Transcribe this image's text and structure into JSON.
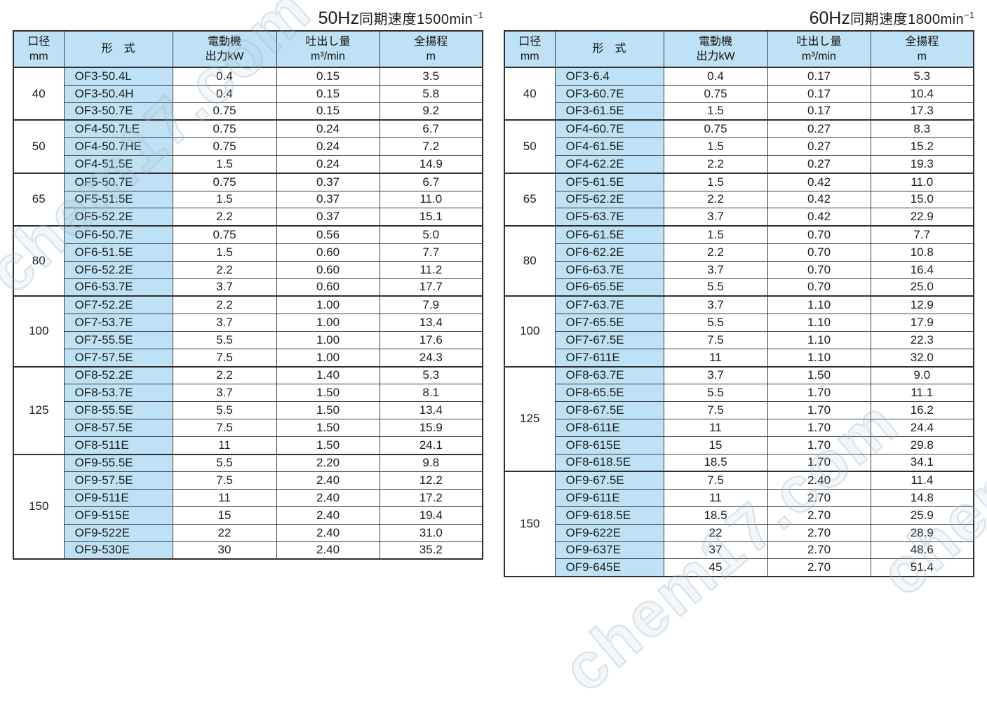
{
  "colors": {
    "cell_blue": "#bfe1f5",
    "grid": "#3e3e3e",
    "text": "#1d1d1d",
    "watermark": "#adc4d8"
  },
  "watermark": {
    "text": "chem17.com"
  },
  "tables": [
    {
      "id": "50hz",
      "title": {
        "hz": "50Hz",
        "body": "同期速度1500min",
        "sup": "−1"
      },
      "headers": {
        "bore": [
          "口径",
          "mm"
        ],
        "model": "形　式",
        "power": [
          "電動機",
          "出力kW"
        ],
        "discharge": [
          "吐出し量",
          "m³/min"
        ],
        "head": [
          "全揚程",
          "m"
        ]
      },
      "groups": [
        {
          "bore": "40",
          "rows": [
            [
              "OF3-50.4L",
              "0.4",
              "0.15",
              "3.5"
            ],
            [
              "OF3-50.4H",
              "0.4",
              "0.15",
              "5.8"
            ],
            [
              "OF3-50.7E",
              "0.75",
              "0.15",
              "9.2"
            ]
          ]
        },
        {
          "bore": "50",
          "rows": [
            [
              "OF4-50.7LE",
              "0.75",
              "0.24",
              "6.7"
            ],
            [
              "OF4-50.7HE",
              "0.75",
              "0.24",
              "7.2"
            ],
            [
              "OF4-51.5E",
              "1.5",
              "0.24",
              "14.9"
            ]
          ]
        },
        {
          "bore": "65",
          "rows": [
            [
              "OF5-50.7E",
              "0.75",
              "0.37",
              "6.7"
            ],
            [
              "OF5-51.5E",
              "1.5",
              "0.37",
              "11.0"
            ],
            [
              "OF5-52.2E",
              "2.2",
              "0.37",
              "15.1"
            ]
          ]
        },
        {
          "bore": "80",
          "rows": [
            [
              "OF6-50.7E",
              "0.75",
              "0.56",
              "5.0"
            ],
            [
              "OF6-51.5E",
              "1.5",
              "0.60",
              "7.7"
            ],
            [
              "OF6-52.2E",
              "2.2",
              "0.60",
              "11.2"
            ],
            [
              "OF6-53.7E",
              "3.7",
              "0.60",
              "17.7"
            ]
          ]
        },
        {
          "bore": "100",
          "rows": [
            [
              "OF7-52.2E",
              "2.2",
              "1.00",
              "7.9"
            ],
            [
              "OF7-53.7E",
              "3.7",
              "1.00",
              "13.4"
            ],
            [
              "OF7-55.5E",
              "5.5",
              "1.00",
              "17.6"
            ],
            [
              "OF7-57.5E",
              "7.5",
              "1.00",
              "24.3"
            ]
          ]
        },
        {
          "bore": "125",
          "rows": [
            [
              "OF8-52.2E",
              "2.2",
              "1.40",
              "5.3"
            ],
            [
              "OF8-53.7E",
              "3.7",
              "1.50",
              "8.1"
            ],
            [
              "OF8-55.5E",
              "5.5",
              "1.50",
              "13.4"
            ],
            [
              "OF8-57.5E",
              "7.5",
              "1.50",
              "15.9"
            ],
            [
              "OF8-511E",
              "11",
              "1.50",
              "24.1"
            ]
          ]
        },
        {
          "bore": "150",
          "rows": [
            [
              "OF9-55.5E",
              "5.5",
              "2.20",
              "9.8"
            ],
            [
              "OF9-57.5E",
              "7.5",
              "2.40",
              "12.2"
            ],
            [
              "OF9-511E",
              "11",
              "2.40",
              "17.2"
            ],
            [
              "OF9-515E",
              "15",
              "2.40",
              "19.4"
            ],
            [
              "OF9-522E",
              "22",
              "2.40",
              "31.0"
            ],
            [
              "OF9-530E",
              "30",
              "2.40",
              "35.2"
            ]
          ]
        }
      ]
    },
    {
      "id": "60hz",
      "title": {
        "hz": "60Hz",
        "body": "同期速度1800min",
        "sup": "−1"
      },
      "headers": {
        "bore": [
          "口径",
          "mm"
        ],
        "model": "形　式",
        "power": [
          "電動機",
          "出力kW"
        ],
        "discharge": [
          "吐出し量",
          "m³/min"
        ],
        "head": [
          "全揚程",
          "m"
        ]
      },
      "groups": [
        {
          "bore": "40",
          "rows": [
            [
              "OF3-6.4",
              "0.4",
              "0.17",
              "5.3"
            ],
            [
              "OF3-60.7E",
              "0.75",
              "0.17",
              "10.4"
            ],
            [
              "OF3-61.5E",
              "1.5",
              "0.17",
              "17.3"
            ]
          ]
        },
        {
          "bore": "50",
          "rows": [
            [
              "OF4-60.7E",
              "0.75",
              "0.27",
              "8.3"
            ],
            [
              "OF4-61.5E",
              "1.5",
              "0.27",
              "15.2"
            ],
            [
              "OF4-62.2E",
              "2.2",
              "0.27",
              "19.3"
            ]
          ]
        },
        {
          "bore": "65",
          "rows": [
            [
              "OF5-61.5E",
              "1.5",
              "0.42",
              "11.0"
            ],
            [
              "OF5-62.2E",
              "2.2",
              "0.42",
              "15.0"
            ],
            [
              "OF5-63.7E",
              "3.7",
              "0.42",
              "22.9"
            ]
          ]
        },
        {
          "bore": "80",
          "rows": [
            [
              "OF6-61.5E",
              "1.5",
              "0.70",
              "7.7"
            ],
            [
              "OF6-62.2E",
              "2.2",
              "0.70",
              "10.8"
            ],
            [
              "OF6-63.7E",
              "3.7",
              "0.70",
              "16.4"
            ],
            [
              "OF6-65.5E",
              "5.5",
              "0.70",
              "25.0"
            ]
          ]
        },
        {
          "bore": "100",
          "rows": [
            [
              "OF7-63.7E",
              "3.7",
              "1.10",
              "12.9"
            ],
            [
              "OF7-65.5E",
              "5.5",
              "1.10",
              "17.9"
            ],
            [
              "OF7-67.5E",
              "7.5",
              "1.10",
              "22.3"
            ],
            [
              "OF7-611E",
              "11",
              "1.10",
              "32.0"
            ]
          ]
        },
        {
          "bore": "125",
          "rows": [
            [
              "OF8-63.7E",
              "3.7",
              "1.50",
              "9.0"
            ],
            [
              "OF8-65.5E",
              "5.5",
              "1.70",
              "11.1"
            ],
            [
              "OF8-67.5E",
              "7.5",
              "1.70",
              "16.2"
            ],
            [
              "OF8-611E",
              "11",
              "1.70",
              "24.4"
            ],
            [
              "OF8-615E",
              "15",
              "1.70",
              "29.8"
            ],
            [
              "OF8-618.5E",
              "18.5",
              "1.70",
              "34.1"
            ]
          ]
        },
        {
          "bore": "150",
          "rows": [
            [
              "OF9-67.5E",
              "7.5",
              "2.40",
              "11.4"
            ],
            [
              "OF9-611E",
              "11",
              "2.70",
              "14.8"
            ],
            [
              "OF9-618.5E",
              "18.5",
              "2.70",
              "25.9"
            ],
            [
              "OF9-622E",
              "22",
              "2.70",
              "28.9"
            ],
            [
              "OF9-637E",
              "37",
              "2.70",
              "48.6"
            ],
            [
              "OF9-645E",
              "45",
              "2.70",
              "51.4"
            ]
          ]
        }
      ]
    }
  ]
}
